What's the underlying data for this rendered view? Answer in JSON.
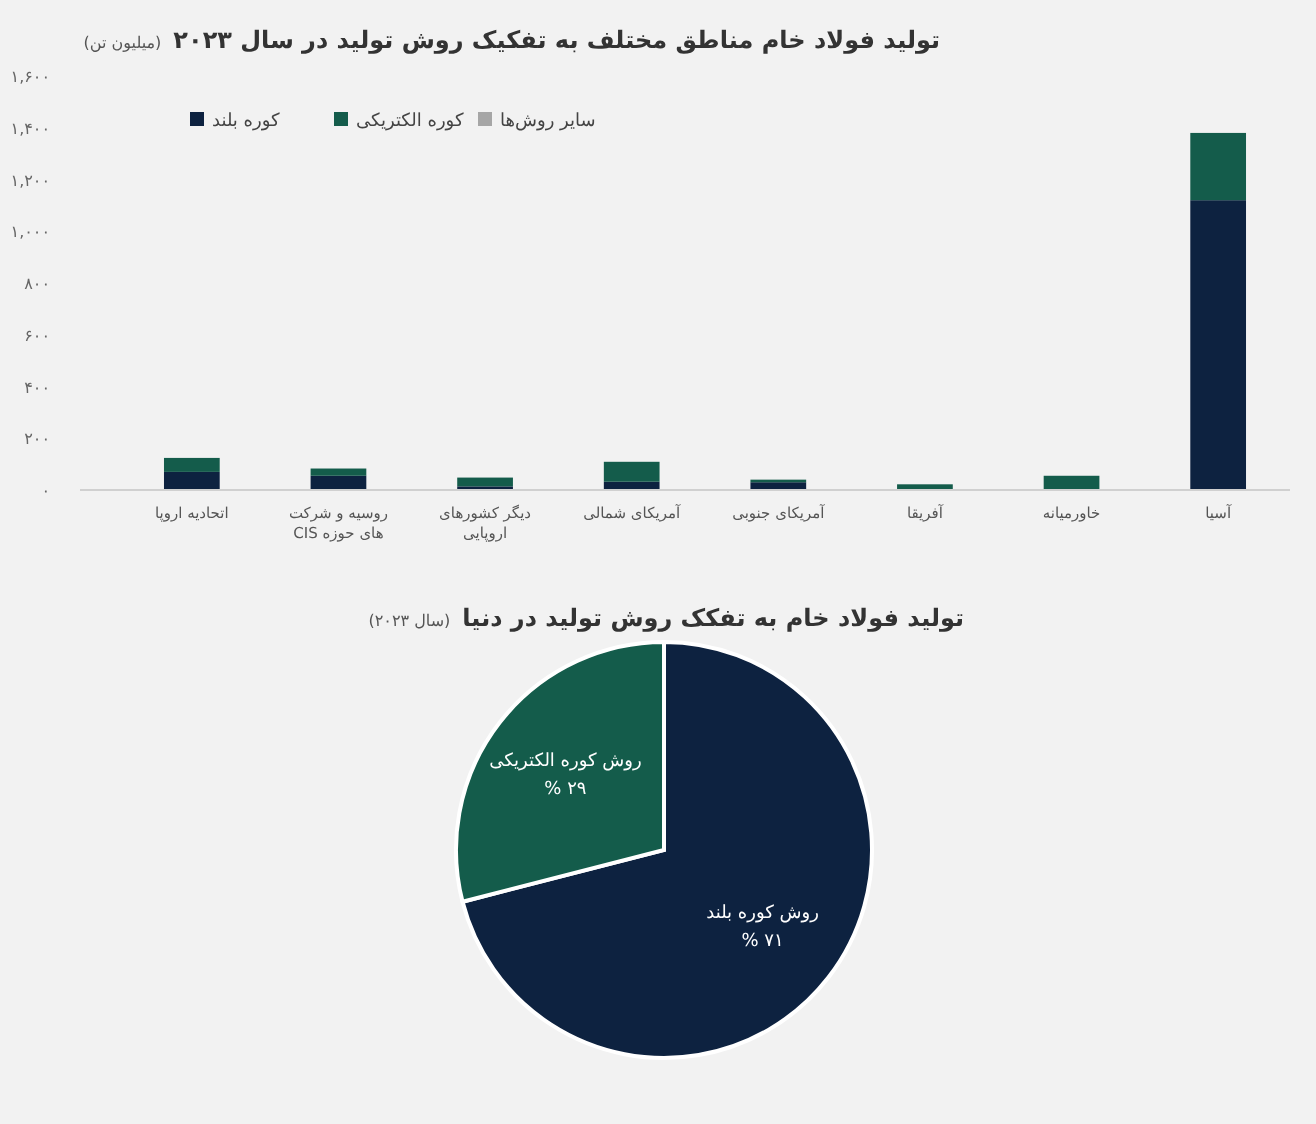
{
  "chart_data": [
    {
      "type": "bar",
      "title": "تولید فولاد خام مناطق مختلف به تفکیک روش تولید در سال ۲۰۲۳",
      "subtitle": "(میلیون تن)",
      "categories": [
        "اتحادیه اروپا",
        "روسیه و شرکت های حوزه CIS",
        "دیگر کشورهای اروپایی",
        "آمریکای شمالی",
        "آمریکای جنوبی",
        "آفریقا",
        "خاورمیانه",
        "آسیا"
      ],
      "stacked": true,
      "series": [
        {
          "name": "کوره بلند",
          "color": "#0d2240",
          "values": [
            70,
            55,
            14,
            32,
            30,
            0,
            0,
            1120
          ]
        },
        {
          "name": "کوره الکتریکی",
          "color": "#145c4b",
          "values": [
            54,
            28,
            34,
            77,
            10,
            22,
            55,
            260
          ]
        },
        {
          "name": "سایر روش‌ها",
          "color": "#a6a6a6",
          "values": [
            0,
            null,
            0,
            0,
            null,
            0,
            0,
            0
          ]
        }
      ],
      "ylim": [
        0,
        1600
      ],
      "yticks": [
        {
          "value": 0,
          "label": "۰"
        },
        {
          "value": 200,
          "label": "۲۰۰"
        },
        {
          "value": 400,
          "label": "۴۰۰"
        },
        {
          "value": 600,
          "label": "۶۰۰"
        },
        {
          "value": 800,
          "label": "۸۰۰"
        },
        {
          "value": 1000,
          "label": "۱,۰۰۰"
        },
        {
          "value": 1200,
          "label": "۱,۲۰۰"
        },
        {
          "value": 1400,
          "label": "۱,۴۰۰"
        },
        {
          "value": 1600,
          "label": "۱,۶۰۰"
        }
      ],
      "grid": false,
      "legend": "top left"
    },
    {
      "type": "pie",
      "title": "تولید فولاد خام به تفکک روش تولید در دنیا",
      "subtitle": "(سال ۲۰۲۳)",
      "categories": [
        "روش کوره بلند",
        "روش کوره الکتریکی"
      ],
      "values": [
        71,
        29
      ],
      "colors": [
        "#0d2240",
        "#145c4b"
      ],
      "value_labels": [
        "۷۱ %",
        "۲۹ %"
      ]
    }
  ]
}
